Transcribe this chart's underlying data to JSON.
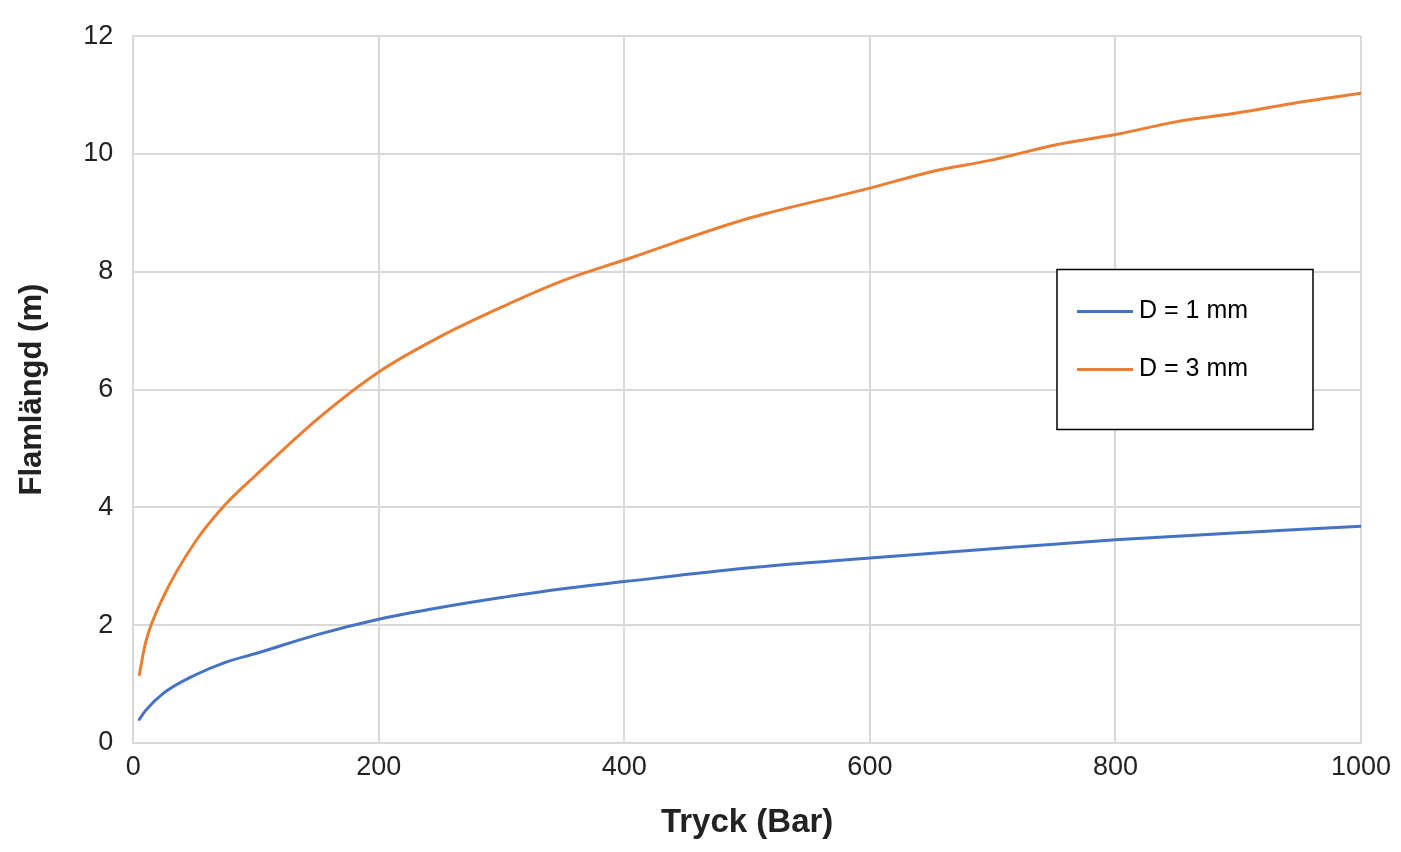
{
  "chart_data": {
    "type": "line",
    "xlabel": "Tryck (Bar)",
    "ylabel": "Flamlängd (m)",
    "xlim": [
      0,
      1000
    ],
    "xticks": [
      0,
      200,
      400,
      600,
      800,
      1000
    ],
    "ylim": [
      0,
      12
    ],
    "yticks": [
      0,
      2,
      4,
      6,
      8,
      10,
      12
    ],
    "grid": true,
    "legend": "right",
    "marker": "none",
    "line_style": "solid",
    "series": [
      {
        "name": "D = 1 mm",
        "color": "#4472c4",
        "x": [
          5,
          10,
          25,
          50,
          75,
          100,
          150,
          200,
          250,
          300,
          350,
          400,
          500,
          600,
          700,
          800,
          900,
          1000
        ],
        "values": [
          0.4,
          0.55,
          0.85,
          1.15,
          1.37,
          1.52,
          1.84,
          2.1,
          2.3,
          2.47,
          2.62,
          2.74,
          2.97,
          3.14,
          3.3,
          3.45,
          3.57,
          3.68
        ]
      },
      {
        "name": "D = 3 mm",
        "color": "#ed7d31",
        "x": [
          5,
          10,
          25,
          50,
          75,
          100,
          150,
          200,
          250,
          300,
          350,
          400,
          500,
          600,
          650,
          700,
          750,
          800,
          850,
          900,
          950,
          1000
        ],
        "values": [
          1.16,
          1.7,
          2.5,
          3.4,
          4.05,
          4.55,
          5.5,
          6.3,
          6.9,
          7.4,
          7.85,
          8.2,
          8.9,
          9.42,
          9.7,
          9.9,
          10.15,
          10.33,
          10.55,
          10.7,
          10.88,
          11.03
        ]
      }
    ]
  }
}
